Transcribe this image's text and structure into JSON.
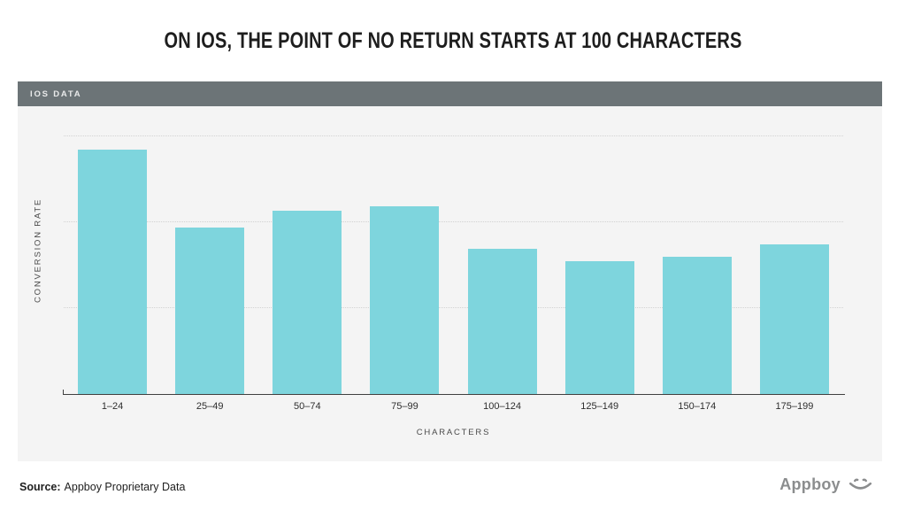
{
  "panel": {
    "header_label": "IOS DATA"
  },
  "chart_data": {
    "type": "bar",
    "title": "ON IOS, THE POINT OF NO RETURN STARTS AT 100 CHARACTERS",
    "categories": [
      "1–24",
      "25–49",
      "50–74",
      "75–99",
      "100–124",
      "125–149",
      "150–174",
      "175–199"
    ],
    "values": [
      2.85,
      1.94,
      2.13,
      2.19,
      1.69,
      1.55,
      1.6,
      1.74
    ],
    "units": "relative conversion rate (y-axis has no numeric tick labels; values estimated against gridlines)",
    "xlabel": "CHARACTERS",
    "ylabel": "CONVERSION RATE",
    "ylim": [
      0,
      3.35
    ],
    "gridline_values": [
      1,
      2,
      3
    ],
    "grid": "horizontal dotted",
    "legend": "none",
    "bar_color": "#7ed5dd"
  },
  "footer": {
    "source_prefix": "Source:",
    "source_text": "Appboy Proprietary Data",
    "brand_name": "Appboy"
  },
  "colors": {
    "bar": "#7ed5dd",
    "header_band": "#6c7477",
    "panel_background": "#f4f4f4",
    "axis_line": "#3f3f3f",
    "title_text": "#1e1e1e",
    "brand_gray": "#8b8d8e"
  }
}
